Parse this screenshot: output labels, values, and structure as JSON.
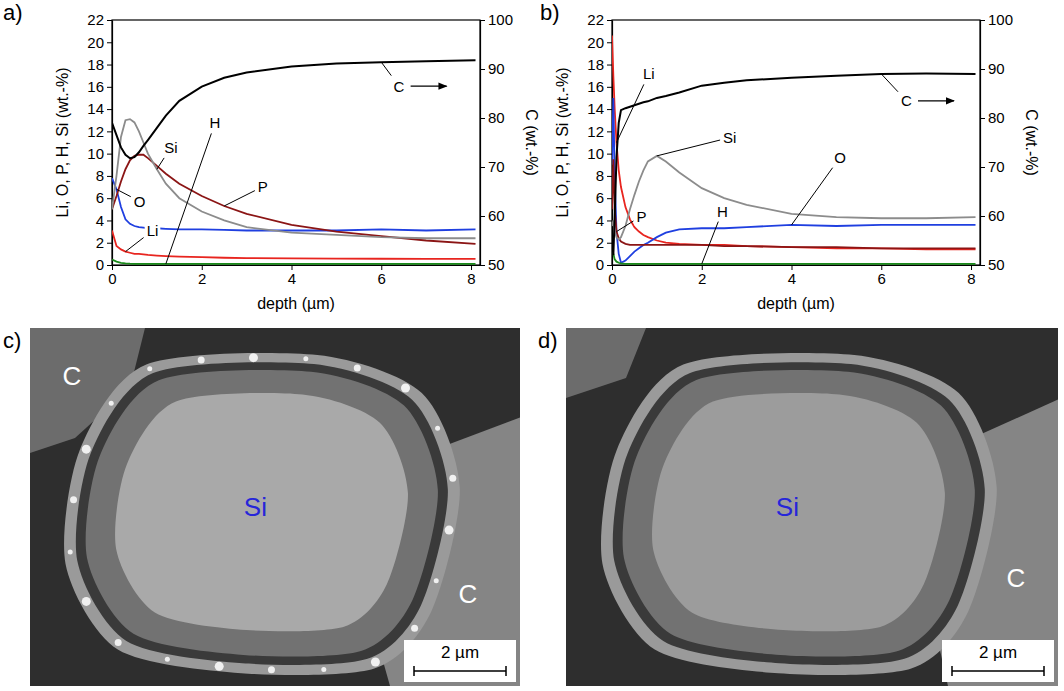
{
  "chart_data": [
    {
      "type": "line",
      "panel_label": "a)",
      "xlabel": "depth (µm)",
      "ylabel": "Li, O, P, H, Si (wt.-%)",
      "y2label": "C (wt.-%)",
      "x": [
        0,
        0.1,
        0.2,
        0.3,
        0.4,
        0.5,
        0.6,
        0.7,
        0.8,
        1,
        1.2,
        1.5,
        2,
        2.5,
        3,
        4,
        5,
        6,
        7,
        8.1
      ],
      "xlim": [
        0,
        8.2
      ],
      "xticks": [
        0,
        2,
        4,
        6,
        8
      ],
      "ylim": [
        0,
        22
      ],
      "yticks": [
        0,
        2,
        4,
        6,
        8,
        10,
        12,
        14,
        16,
        18,
        20,
        22
      ],
      "y2lim": [
        50,
        100
      ],
      "y2ticks": [
        50,
        60,
        70,
        80,
        90,
        100
      ],
      "series": [
        {
          "name": "Li",
          "color": "#e8251f",
          "values": [
            3.1,
            1.7,
            1.4,
            1.2,
            1.1,
            1.0,
            1.0,
            0.95,
            0.9,
            0.85,
            0.8,
            0.75,
            0.7,
            0.65,
            0.62,
            0.6,
            0.58,
            0.56,
            0.55,
            0.55
          ]
        },
        {
          "name": "O",
          "color": "#1f3fe0",
          "values": [
            7.8,
            6.8,
            5.2,
            4.1,
            3.7,
            3.5,
            3.4,
            3.35,
            3.3,
            3.3,
            3.25,
            3.2,
            3.2,
            3.15,
            3.1,
            3.1,
            3.1,
            3.2,
            3.1,
            3.2
          ]
        },
        {
          "name": "P",
          "color": "#8b1515",
          "values": [
            5,
            6.2,
            7.5,
            8.6,
            9.4,
            9.8,
            9.9,
            9.9,
            9.6,
            8.9,
            8.2,
            7.3,
            6.2,
            5.3,
            4.6,
            3.6,
            3.0,
            2.6,
            2.2,
            1.9
          ]
        },
        {
          "name": "H",
          "color": "#1a8a1a",
          "values": [
            0.5,
            0.3,
            0.2,
            0.15,
            0.12,
            0.1,
            0.1,
            0.1,
            0.1,
            0.1,
            0.1,
            0.1,
            0.1,
            0.1,
            0.1,
            0.1,
            0.1,
            0.1,
            0.1,
            0.1
          ]
        },
        {
          "name": "Si",
          "color": "#8c8c8c",
          "values": [
            5,
            8,
            11.5,
            13,
            13.1,
            12.8,
            12,
            11,
            10,
            8.6,
            7.3,
            6,
            4.8,
            4,
            3.4,
            2.9,
            2.7,
            2.5,
            2.4,
            2.4
          ]
        },
        {
          "name": "C",
          "color": "#000000",
          "axis": "y2",
          "values": [
            79,
            76.5,
            74,
            72.5,
            71.8,
            72,
            73,
            74.3,
            75.5,
            78,
            80.5,
            83.5,
            86.4,
            88.2,
            89.3,
            90.5,
            91.1,
            91.4,
            91.6,
            91.8
          ]
        }
      ]
    },
    {
      "type": "line",
      "panel_label": "b)",
      "xlabel": "depth (µm)",
      "ylabel": "Li, O, P, H, Si (wt.-%)",
      "y2label": "C (wt.-%)",
      "x": [
        0,
        0.03,
        0.06,
        0.1,
        0.15,
        0.2,
        0.3,
        0.4,
        0.5,
        0.6,
        0.7,
        0.8,
        1.0,
        1.2,
        1.5,
        2,
        2.5,
        3,
        4,
        5,
        6,
        7,
        8.1
      ],
      "xlim": [
        0,
        8.2
      ],
      "xticks": [
        0,
        2,
        4,
        6,
        8
      ],
      "ylim": [
        0,
        22
      ],
      "yticks": [
        0,
        2,
        4,
        6,
        8,
        10,
        12,
        14,
        16,
        18,
        20,
        22
      ],
      "y2lim": [
        50,
        100
      ],
      "y2ticks": [
        50,
        60,
        70,
        80,
        90,
        100
      ],
      "series": [
        {
          "name": "Li",
          "color": "#e8251f",
          "values": [
            20.6,
            17,
            14,
            11,
            8.5,
            7,
            5.2,
            4.1,
            3.4,
            3,
            2.7,
            2.5,
            2.2,
            2.0,
            1.9,
            1.8,
            1.8,
            1.7,
            1.6,
            1.5,
            1.5,
            1.4,
            1.4
          ]
        },
        {
          "name": "O",
          "color": "#1f3fe0",
          "values": [
            9,
            15,
            8,
            3,
            1,
            0.2,
            0.4,
            0.8,
            1.2,
            1.5,
            1.8,
            2,
            2.5,
            2.9,
            3.2,
            3.3,
            3.3,
            3.4,
            3.6,
            3.5,
            3.6,
            3.6,
            3.6
          ]
        },
        {
          "name": "P",
          "color": "#8b1515",
          "values": [
            5,
            9.5,
            5,
            3,
            2.4,
            2.1,
            1.9,
            1.8,
            1.8,
            1.8,
            1.8,
            1.8,
            1.8,
            1.8,
            1.8,
            1.8,
            1.7,
            1.7,
            1.6,
            1.6,
            1.5,
            1.5,
            1.5
          ]
        },
        {
          "name": "H",
          "color": "#1a8a1a",
          "values": [
            1.5,
            1,
            0.5,
            0.3,
            0.2,
            0.15,
            0.1,
            0.1,
            0.1,
            0.1,
            0.1,
            0.1,
            0.1,
            0.1,
            0.1,
            0.1,
            0.1,
            0.1,
            0.1,
            0.1,
            0.1,
            0.1,
            0.1
          ]
        },
        {
          "name": "Si",
          "color": "#8c8c8c",
          "values": [
            3.5,
            4,
            3,
            2.5,
            2.3,
            2.5,
            3.5,
            5,
            6.3,
            7.5,
            8.5,
            9.3,
            9.8,
            9.3,
            8.3,
            6.9,
            6,
            5.4,
            4.6,
            4.3,
            4.2,
            4.2,
            4.3
          ]
        },
        {
          "name": "C",
          "color": "#000000",
          "axis": "y2",
          "values": [
            55,
            52,
            60,
            72,
            79,
            81.6,
            82,
            82.3,
            82.6,
            82.9,
            83.2,
            83.4,
            84.1,
            84.5,
            85.2,
            86.6,
            87.2,
            87.7,
            88.2,
            88.6,
            89,
            89.1,
            89
          ]
        }
      ]
    }
  ],
  "images": [
    {
      "panel_label": "c)",
      "labels": [
        "C",
        "Si",
        "C"
      ],
      "scale_bar": "2 µm"
    },
    {
      "panel_label": "d)",
      "labels": [
        "Si",
        "C"
      ],
      "scale_bar": "2 µm"
    }
  ]
}
